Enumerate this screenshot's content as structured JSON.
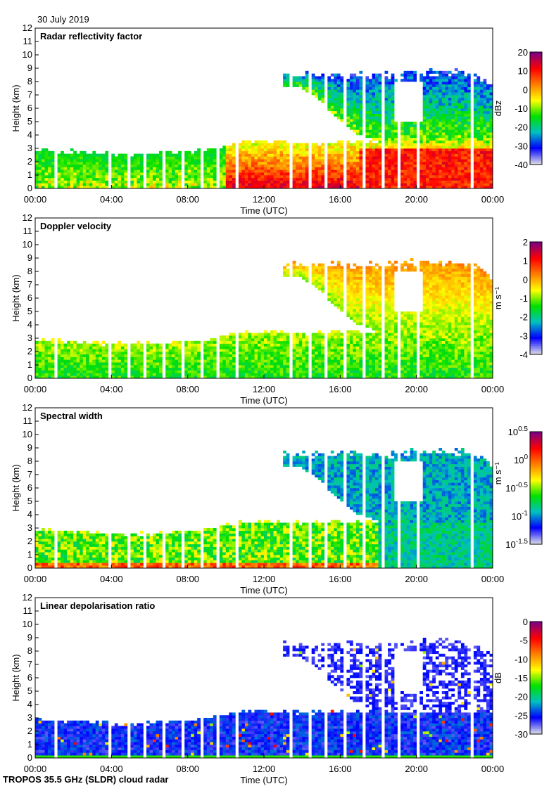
{
  "date_label": "30 July 2019",
  "footer": "TROPOS 35.5 GHz (SLDR) cloud radar",
  "chart_data": [
    {
      "type": "heatmap",
      "title": "Radar reflectivity factor",
      "xlabel": "Time (UTC)",
      "ylabel": "Height (km)",
      "xticks": [
        "00:00",
        "04:00",
        "08:00",
        "12:00",
        "16:00",
        "20:00",
        "00:00"
      ],
      "yticks": [
        "0",
        "1",
        "2",
        "3",
        "4",
        "5",
        "6",
        "7",
        "8",
        "9",
        "10",
        "11",
        "12"
      ],
      "ylim": [
        0,
        12
      ],
      "xlim_hours": [
        0,
        24
      ],
      "colorbar": {
        "label": "dBz",
        "range": [
          -40,
          20
        ],
        "ticks": [
          "20",
          "10",
          "0",
          "-10",
          "-20",
          "-30",
          "-40"
        ],
        "scale": "linear"
      },
      "variable": "reflectivity"
    },
    {
      "type": "heatmap",
      "title": "Doppler velocity",
      "xlabel": "Time (UTC)",
      "ylabel": "Height (km)",
      "xticks": [
        "00:00",
        "04:00",
        "08:00",
        "12:00",
        "16:00",
        "20:00",
        "00:00"
      ],
      "yticks": [
        "0",
        "1",
        "2",
        "3",
        "4",
        "5",
        "6",
        "7",
        "8",
        "9",
        "10",
        "11",
        "12"
      ],
      "ylim": [
        0,
        12
      ],
      "xlim_hours": [
        0,
        24
      ],
      "colorbar": {
        "label": "m s⁻¹",
        "range": [
          -4,
          2
        ],
        "ticks": [
          "2",
          "1",
          "0",
          "-1",
          "-2",
          "-3",
          "-4"
        ],
        "scale": "linear"
      },
      "variable": "velocity"
    },
    {
      "type": "heatmap",
      "title": "Spectral width",
      "xlabel": "Time (UTC)",
      "ylabel": "Height (km)",
      "xticks": [
        "00:00",
        "04:00",
        "08:00",
        "12:00",
        "16:00",
        "20:00",
        "00:00"
      ],
      "yticks": [
        "0",
        "1",
        "2",
        "3",
        "4",
        "5",
        "6",
        "7",
        "8",
        "9",
        "10",
        "11",
        "12"
      ],
      "ylim": [
        0,
        12
      ],
      "xlim_hours": [
        0,
        24
      ],
      "colorbar": {
        "label": "m s⁻¹",
        "range": [
          -1.5,
          0.5
        ],
        "ticks": [
          "10^0.5",
          "10^0",
          "10^-0.5",
          "10^-1",
          "10^-1.5"
        ],
        "scale": "log10"
      },
      "variable": "width"
    },
    {
      "type": "heatmap",
      "title": "Linear depolarisation ratio",
      "xlabel": "Time (UTC)",
      "ylabel": "Height (km)",
      "xticks": [
        "00:00",
        "04:00",
        "08:00",
        "12:00",
        "16:00",
        "20:00",
        "00:00"
      ],
      "yticks": [
        "0",
        "1",
        "2",
        "3",
        "4",
        "5",
        "6",
        "7",
        "8",
        "9",
        "10",
        "11",
        "12"
      ],
      "ylim": [
        0,
        12
      ],
      "xlim_hours": [
        0,
        24
      ],
      "colorbar": {
        "label": "dB",
        "range": [
          -30,
          0
        ],
        "ticks": [
          "0",
          "-5",
          "-10",
          "-15",
          "-20",
          "-25",
          "-30"
        ],
        "scale": "linear"
      },
      "variable": "ldr"
    }
  ],
  "cloud_structure": {
    "hours": [
      0,
      1,
      2,
      3,
      4,
      5,
      6,
      7,
      8,
      9,
      10,
      11,
      12,
      13,
      14,
      15,
      16,
      17,
      18,
      19,
      20,
      21,
      22,
      23,
      24
    ],
    "low_cloud_top_km": [
      2.9,
      2.8,
      2.8,
      2.7,
      2.6,
      2.6,
      2.6,
      2.7,
      2.8,
      2.9,
      3.2,
      3.5,
      3.5,
      3.5,
      3.4,
      3.4,
      3.5,
      3.5,
      3.5,
      3.5,
      3.5,
      3.5,
      3.5,
      3.5,
      3.5
    ],
    "upper_cloud_base_km": [
      null,
      null,
      null,
      null,
      null,
      null,
      null,
      null,
      null,
      null,
      null,
      null,
      null,
      null,
      7.5,
      6.5,
      5.0,
      4.0,
      3.5,
      3.5,
      3.5,
      3.5,
      3.5,
      3.5,
      3.5
    ],
    "upper_cloud_top_km": [
      null,
      null,
      null,
      null,
      null,
      null,
      null,
      null,
      null,
      null,
      null,
      null,
      null,
      null,
      8.8,
      8.8,
      8.8,
      8.8,
      8.8,
      8.8,
      9.0,
      9.0,
      9.0,
      8.8,
      8.0
    ],
    "data_gaps_utc_hours": [
      1.1,
      2.0,
      3.0,
      3.9,
      4.9,
      5.8,
      6.8,
      7.7,
      8.7,
      9.6,
      10.6,
      11.5,
      12.5,
      13.4,
      14.4,
      15.3,
      16.3,
      17.2,
      18.2,
      19.1,
      20.1,
      21.0,
      22.0,
      22.9
    ]
  },
  "colors": {
    "colormap": [
      "#d8d8e8",
      "#0000ff",
      "#00c0c0",
      "#00e000",
      "#ffff00",
      "#ff8000",
      "#ff0000",
      "#800080"
    ],
    "missing": "#ffffff"
  }
}
